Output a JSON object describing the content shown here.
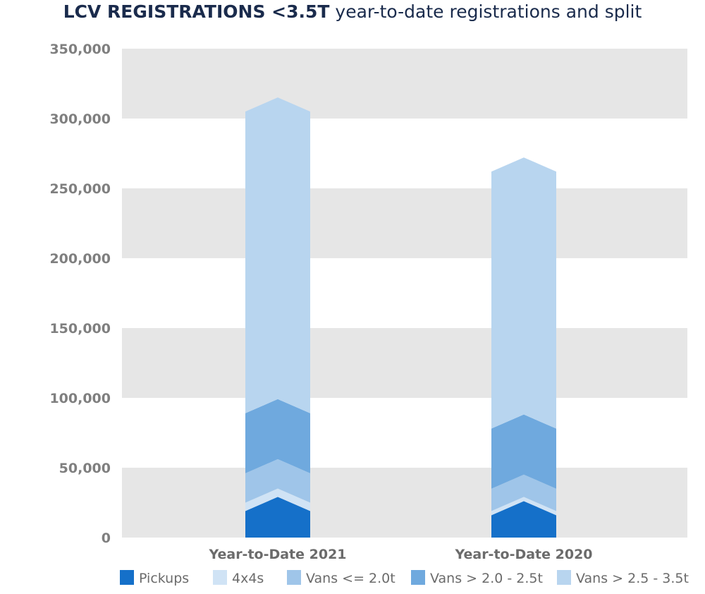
{
  "chart_data": {
    "type": "bar",
    "stacked": true,
    "title_bold": "LCV REGISTRATIONS <3.5T",
    "title_rest": " year-to-date registrations and split",
    "categories": [
      "Year-to-Date 2021",
      "Year-to-Date 2020"
    ],
    "series": [
      {
        "name": "Pickups",
        "color": "#1570c9",
        "values": [
          19000,
          16000
        ]
      },
      {
        "name": "4x4s",
        "color": "#d0e3f5",
        "values": [
          6000,
          3000
        ]
      },
      {
        "name": "Vans <= 2.0t",
        "color": "#9fc5e9",
        "values": [
          21000,
          16000
        ]
      },
      {
        "name": "Vans > 2.0 - 2.5t",
        "color": "#6fa9de",
        "values": [
          43000,
          43000
        ]
      },
      {
        "name": "Vans > 2.5 - 3.5t",
        "color": "#b8d5ef",
        "values": [
          216000,
          184000
        ]
      }
    ],
    "yticks": [
      "0",
      "50,000",
      "100,000",
      "150,000",
      "200,000",
      "250,000",
      "300,000",
      "350,000"
    ],
    "ylim": [
      0,
      350000
    ],
    "grid": true,
    "legend_position": "bottom",
    "xlabel": "",
    "ylabel": ""
  }
}
